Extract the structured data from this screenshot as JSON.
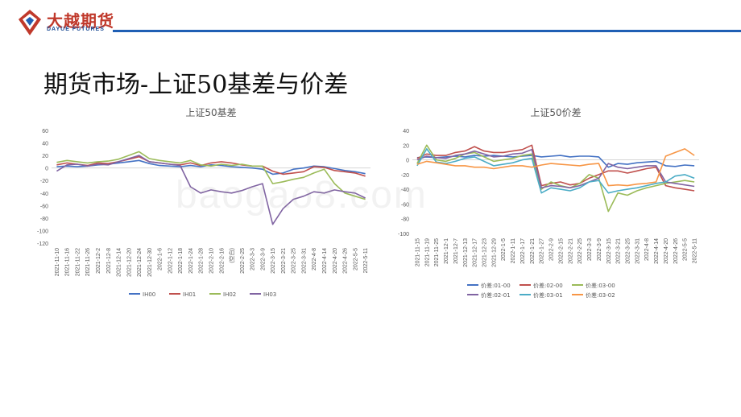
{
  "header": {
    "logo_cn": "大越期货",
    "logo_en": "DAYUE FUTURES",
    "colors": {
      "brand_red": "#c0392b",
      "brand_blue": "#1f5fb4"
    }
  },
  "slide_title": "期货市场-上证50基差与价差",
  "watermark": "baogao8.com",
  "chart_data": [
    {
      "type": "line",
      "title": "上证50基差",
      "ylim": [
        -120,
        60
      ],
      "yticks": [
        60,
        40,
        20,
        0,
        -20,
        -40,
        -60,
        -80,
        -100,
        -120
      ],
      "categories": [
        "2021-11-10",
        "2021-11-16",
        "2021-11-22",
        "2021-11-26",
        "2021-12-2",
        "2021-12-8",
        "2021-12-14",
        "2021-12-20",
        "2021-12-24",
        "2021-12-30",
        "2022-1-6",
        "2022-1-12",
        "2022-1-18",
        "2022-1-24",
        "2022-1-28",
        "2022-2-10",
        "2022-2-16",
        "(空白)",
        "2022-2-25",
        "2022-3-3",
        "2022-3-9",
        "2022-3-15",
        "2022-3-21",
        "2022-3-25",
        "2022-3-31",
        "2022-4-8",
        "2022-4-14",
        "2022-4-20",
        "2022-4-26",
        "2022-5-5",
        "2022-5-11"
      ],
      "legend_position": "bottom",
      "series": [
        {
          "name": "IH00",
          "color": "#4472c4",
          "values": [
            2,
            3,
            2,
            3,
            5,
            6,
            8,
            10,
            12,
            7,
            4,
            3,
            2,
            4,
            2,
            5,
            4,
            2,
            1,
            0,
            -2,
            -10,
            -8,
            -2,
            0,
            3,
            2,
            -1,
            -4,
            -6,
            -9
          ]
        },
        {
          "name": "IH01",
          "color": "#c0504d",
          "values": [
            5,
            8,
            6,
            4,
            8,
            7,
            10,
            14,
            18,
            10,
            8,
            6,
            5,
            8,
            4,
            8,
            10,
            8,
            5,
            3,
            3,
            -5,
            -10,
            -8,
            -6,
            2,
            1,
            -4,
            -6,
            -8,
            -13
          ]
        },
        {
          "name": "IH02",
          "color": "#9bbb59",
          "values": [
            9,
            12,
            10,
            8,
            10,
            11,
            14,
            20,
            26,
            15,
            12,
            10,
            8,
            12,
            5,
            3,
            6,
            4,
            6,
            3,
            3,
            -25,
            -22,
            -18,
            -15,
            -8,
            -2,
            -25,
            -40,
            -45,
            -50
          ]
        },
        {
          "name": "IH03",
          "color": "#8064a2",
          "values": [
            -5,
            5,
            6,
            3,
            6,
            5,
            10,
            15,
            20,
            10,
            8,
            6,
            4,
            -30,
            -40,
            -35,
            -38,
            -40,
            -36,
            -30,
            -25,
            -90,
            -65,
            -50,
            -45,
            -38,
            -40,
            -35,
            -38,
            -40,
            -48
          ]
        }
      ]
    },
    {
      "type": "line",
      "title": "上证50价差",
      "ylim": [
        -100,
        40
      ],
      "yticks": [
        40,
        20,
        0,
        -20,
        -40,
        -60,
        -80,
        -100
      ],
      "categories": [
        "2021-11-15",
        "2021-11-19",
        "2021-11-25",
        "2021-12-1",
        "2021-12-7",
        "2021-12-13",
        "2021-12-17",
        "2021-12-23",
        "2021-12-29",
        "2022-1-5",
        "2022-1-11",
        "2022-1-17",
        "2022-1-21",
        "2022-1-27",
        "2022-2-9",
        "2022-2-15",
        "2022-2-21",
        "2022-2-25",
        "2022-3-3",
        "2022-3-9",
        "2022-3-15",
        "2022-3-21",
        "2022-3-25",
        "2022-3-31",
        "2022-4-8",
        "2022-4-14",
        "2022-4-20",
        "2022-4-26",
        "2022-5-5",
        "2022-5-11"
      ],
      "legend_position": "bottom",
      "series": [
        {
          "name": "价差:01-00",
          "color": "#4472c4",
          "values": [
            3,
            4,
            3,
            4,
            5,
            4,
            6,
            5,
            6,
            5,
            4,
            5,
            6,
            4,
            5,
            6,
            4,
            5,
            5,
            4,
            -10,
            -5,
            -6,
            -4,
            -3,
            -2,
            -8,
            -9,
            -7,
            -8
          ]
        },
        {
          "name": "价差:02-00",
          "color": "#c0504d",
          "values": [
            2,
            8,
            6,
            6,
            10,
            12,
            18,
            12,
            10,
            10,
            12,
            14,
            20,
            -35,
            -32,
            -30,
            -34,
            -32,
            -25,
            -20,
            -15,
            -15,
            -18,
            -15,
            -12,
            -10,
            -35,
            -38,
            -40,
            -42
          ]
        },
        {
          "name": "价差:03-00",
          "color": "#9bbb59",
          "values": [
            -5,
            20,
            0,
            -2,
            2,
            8,
            10,
            4,
            -2,
            0,
            2,
            6,
            8,
            -40,
            -30,
            -35,
            -38,
            -32,
            -20,
            -25,
            -70,
            -45,
            -48,
            -42,
            -38,
            -35,
            -32,
            -30,
            -28,
            -30
          ]
        },
        {
          "name": "价差:02-01",
          "color": "#8064a2",
          "values": [
            0,
            5,
            3,
            2,
            6,
            8,
            12,
            8,
            4,
            5,
            8,
            9,
            14,
            -38,
            -35,
            -36,
            -38,
            -35,
            -30,
            -25,
            -5,
            -10,
            -12,
            -10,
            -8,
            -8,
            -30,
            -32,
            -34,
            -36
          ]
        },
        {
          "name": "价差:03-01",
          "color": "#4bacc6",
          "values": [
            -8,
            15,
            -3,
            -5,
            -2,
            2,
            4,
            -2,
            -8,
            -6,
            -4,
            0,
            2,
            -45,
            -38,
            -40,
            -42,
            -38,
            -30,
            -28,
            -45,
            -42,
            -40,
            -38,
            -35,
            -32,
            -30,
            -22,
            -20,
            -25
          ]
        },
        {
          "name": "价差:03-02",
          "color": "#f79646",
          "values": [
            -6,
            -2,
            -4,
            -6,
            -8,
            -8,
            -10,
            -10,
            -12,
            -10,
            -8,
            -8,
            -10,
            -7,
            -5,
            -6,
            -7,
            -8,
            -6,
            -5,
            -35,
            -34,
            -35,
            -33,
            -32,
            -30,
            5,
            10,
            15,
            6
          ]
        }
      ]
    }
  ]
}
